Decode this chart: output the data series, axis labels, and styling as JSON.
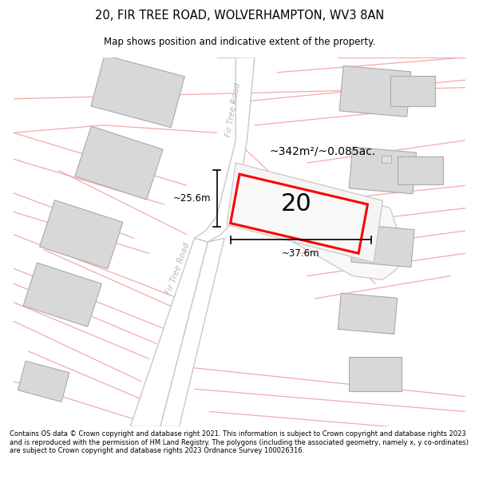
{
  "title_line1": "20, FIR TREE ROAD, WOLVERHAMPTON, WV3 8AN",
  "title_line2": "Map shows position and indicative extent of the property.",
  "footer": "Contains OS data © Crown copyright and database right 2021. This information is subject to Crown copyright and database rights 2023 and is reproduced with the permission of HM Land Registry. The polygons (including the associated geometry, namely x, y co-ordinates) are subject to Crown copyright and database rights 2023 Ordnance Survey 100026316.",
  "bg_color": "#ffffff",
  "map_bg": "#ffffff",
  "road_line_color": "#f4aaaa",
  "road_fill_color": "#ffffff",
  "road_edge_color": "#c8c8c8",
  "building_color": "#d8d8d8",
  "building_edge": "#aaaaaa",
  "highlight_color": "#ff0000",
  "highlight_fill": "#f0f0f0",
  "road_label_color": "#c0c0c0",
  "area_label": "~342m²/~0.085ac.",
  "number_label": "20",
  "dim_h_label": "~37.6m",
  "dim_v_label": "~25.6m"
}
